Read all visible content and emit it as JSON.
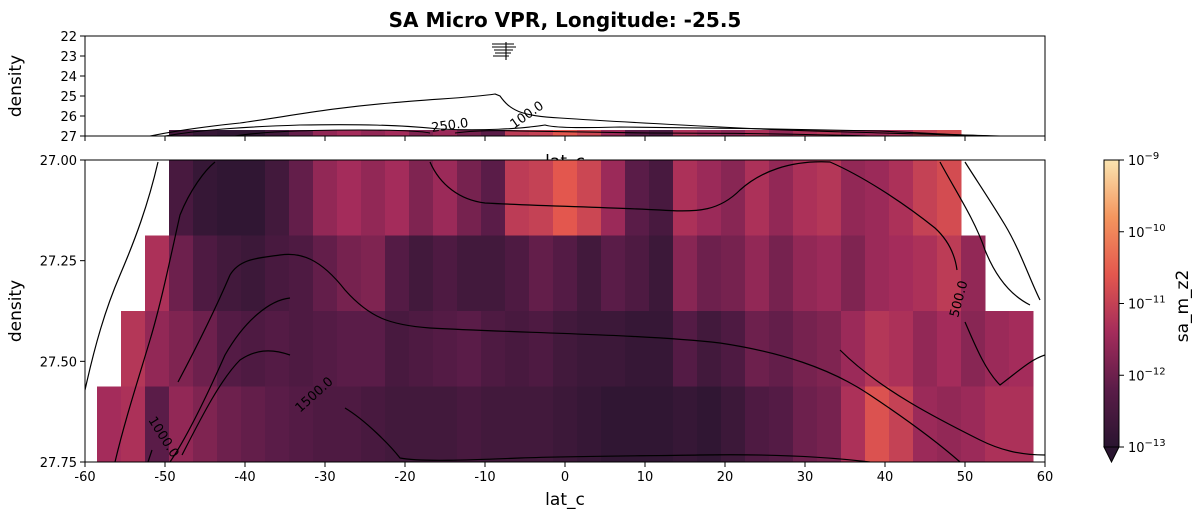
{
  "chart_data": {
    "type": "heatmap",
    "title": "SA Micro VPR, Longitude: -25.5",
    "top_panel": {
      "xlabel": "lat_c",
      "ylabel": "density",
      "xlim": [
        -60,
        60
      ],
      "ylim": [
        22,
        27
      ],
      "y_ticks": [
        "22",
        "23",
        "24",
        "25",
        "26",
        "27"
      ],
      "contour_labels": [
        "250.0",
        "100.0"
      ]
    },
    "main_panel": {
      "xlabel": "lat_c",
      "ylabel": "density",
      "xlim": [
        -60,
        60
      ],
      "ylim": [
        27.0,
        27.75
      ],
      "x_ticks": [
        "-60",
        "-50",
        "-40",
        "-30",
        "-20",
        "-10",
        "0",
        "10",
        "20",
        "30",
        "40",
        "50",
        "60"
      ],
      "y_ticks": [
        "27.00",
        "27.25",
        "27.50",
        "27.75"
      ],
      "contour_labels": [
        "1000.0",
        "1500.0",
        "500.0"
      ],
      "lat_bins": [
        -57,
        -54,
        -51,
        -48,
        -45,
        -42,
        -39,
        -36,
        -33,
        -30,
        -27,
        -24,
        -21,
        -18,
        -15,
        -12,
        -9,
        -6,
        -3,
        0,
        3,
        6,
        9,
        12,
        15,
        18,
        21,
        24,
        27,
        30,
        33,
        36,
        39,
        42,
        45,
        48,
        51,
        54,
        57
      ],
      "log10_values_by_bin": [
        [
          null,
          null,
          null,
          -11.4
        ],
        [
          null,
          null,
          -11.2,
          -11.3
        ],
        [
          null,
          -11.3,
          -11.6,
          -12.2
        ],
        [
          -12.5,
          -12.0,
          -11.8,
          -11.6
        ],
        [
          -12.8,
          -12.4,
          -12.0,
          -11.8
        ],
        [
          -12.9,
          -12.6,
          -12.3,
          -12.0
        ],
        [
          -12.9,
          -12.7,
          -12.4,
          -12.1
        ],
        [
          -12.6,
          -12.5,
          -12.3,
          -12.2
        ],
        [
          -12.1,
          -12.4,
          -12.4,
          -12.3
        ],
        [
          -11.6,
          -12.1,
          -12.3,
          -12.4
        ],
        [
          -11.4,
          -11.9,
          -12.2,
          -12.4
        ],
        [
          -11.6,
          -11.8,
          -12.2,
          -12.5
        ],
        [
          -11.4,
          -12.3,
          -12.5,
          -12.6
        ],
        [
          -11.8,
          -12.6,
          -12.4,
          -12.6
        ],
        [
          -11.5,
          -12.4,
          -12.3,
          -12.6
        ],
        [
          -11.9,
          -12.6,
          -12.2,
          -12.5
        ],
        [
          -12.2,
          -12.6,
          -12.4,
          -12.6
        ],
        [
          -11.1,
          -12.4,
          -12.5,
          -12.6
        ],
        [
          -11.0,
          -12.1,
          -12.4,
          -12.6
        ],
        [
          -10.6,
          -12.3,
          -12.6,
          -12.7
        ],
        [
          -10.9,
          -12.6,
          -12.7,
          -12.8
        ],
        [
          -11.5,
          -12.2,
          -12.7,
          -12.9
        ],
        [
          -12.2,
          -12.4,
          -12.8,
          -12.9
        ],
        [
          -12.5,
          -12.7,
          -12.8,
          -12.9
        ],
        [
          -11.3,
          -11.7,
          -12.3,
          -12.8
        ],
        [
          -11.5,
          -12.0,
          -12.6,
          -12.9
        ],
        [
          -11.7,
          -11.9,
          -12.4,
          -12.7
        ],
        [
          -11.3,
          -11.6,
          -12.0,
          -12.4
        ],
        [
          -11.6,
          -11.9,
          -12.1,
          -12.3
        ],
        [
          -11.3,
          -11.6,
          -11.9,
          -12.0
        ],
        [
          -11.2,
          -11.5,
          -11.8,
          -11.9
        ],
        [
          -11.6,
          -11.8,
          -11.5,
          -11.3
        ],
        [
          -11.5,
          -11.5,
          -11.2,
          -10.7
        ],
        [
          -11.3,
          -11.4,
          -11.3,
          -11.0
        ],
        [
          -11.0,
          -11.3,
          -11.6,
          -11.5
        ],
        [
          -10.8,
          -11.1,
          -11.4,
          -11.6
        ],
        [
          null,
          -11.6,
          -11.7,
          -11.5
        ],
        [
          null,
          null,
          -11.5,
          -11.3
        ],
        [
          null,
          null,
          -11.4,
          -11.3
        ]
      ]
    },
    "colorbar": {
      "label": "sa_m_z2",
      "scale": "log",
      "range": [
        1e-13,
        1e-09
      ],
      "tick_labels": [
        {
          "base": "10",
          "exp": "−9"
        },
        {
          "base": "10",
          "exp": "−10"
        },
        {
          "base": "10",
          "exp": "−11"
        },
        {
          "base": "10",
          "exp": "−12"
        },
        {
          "base": "10",
          "exp": "−13"
        }
      ],
      "extend": "min"
    }
  }
}
